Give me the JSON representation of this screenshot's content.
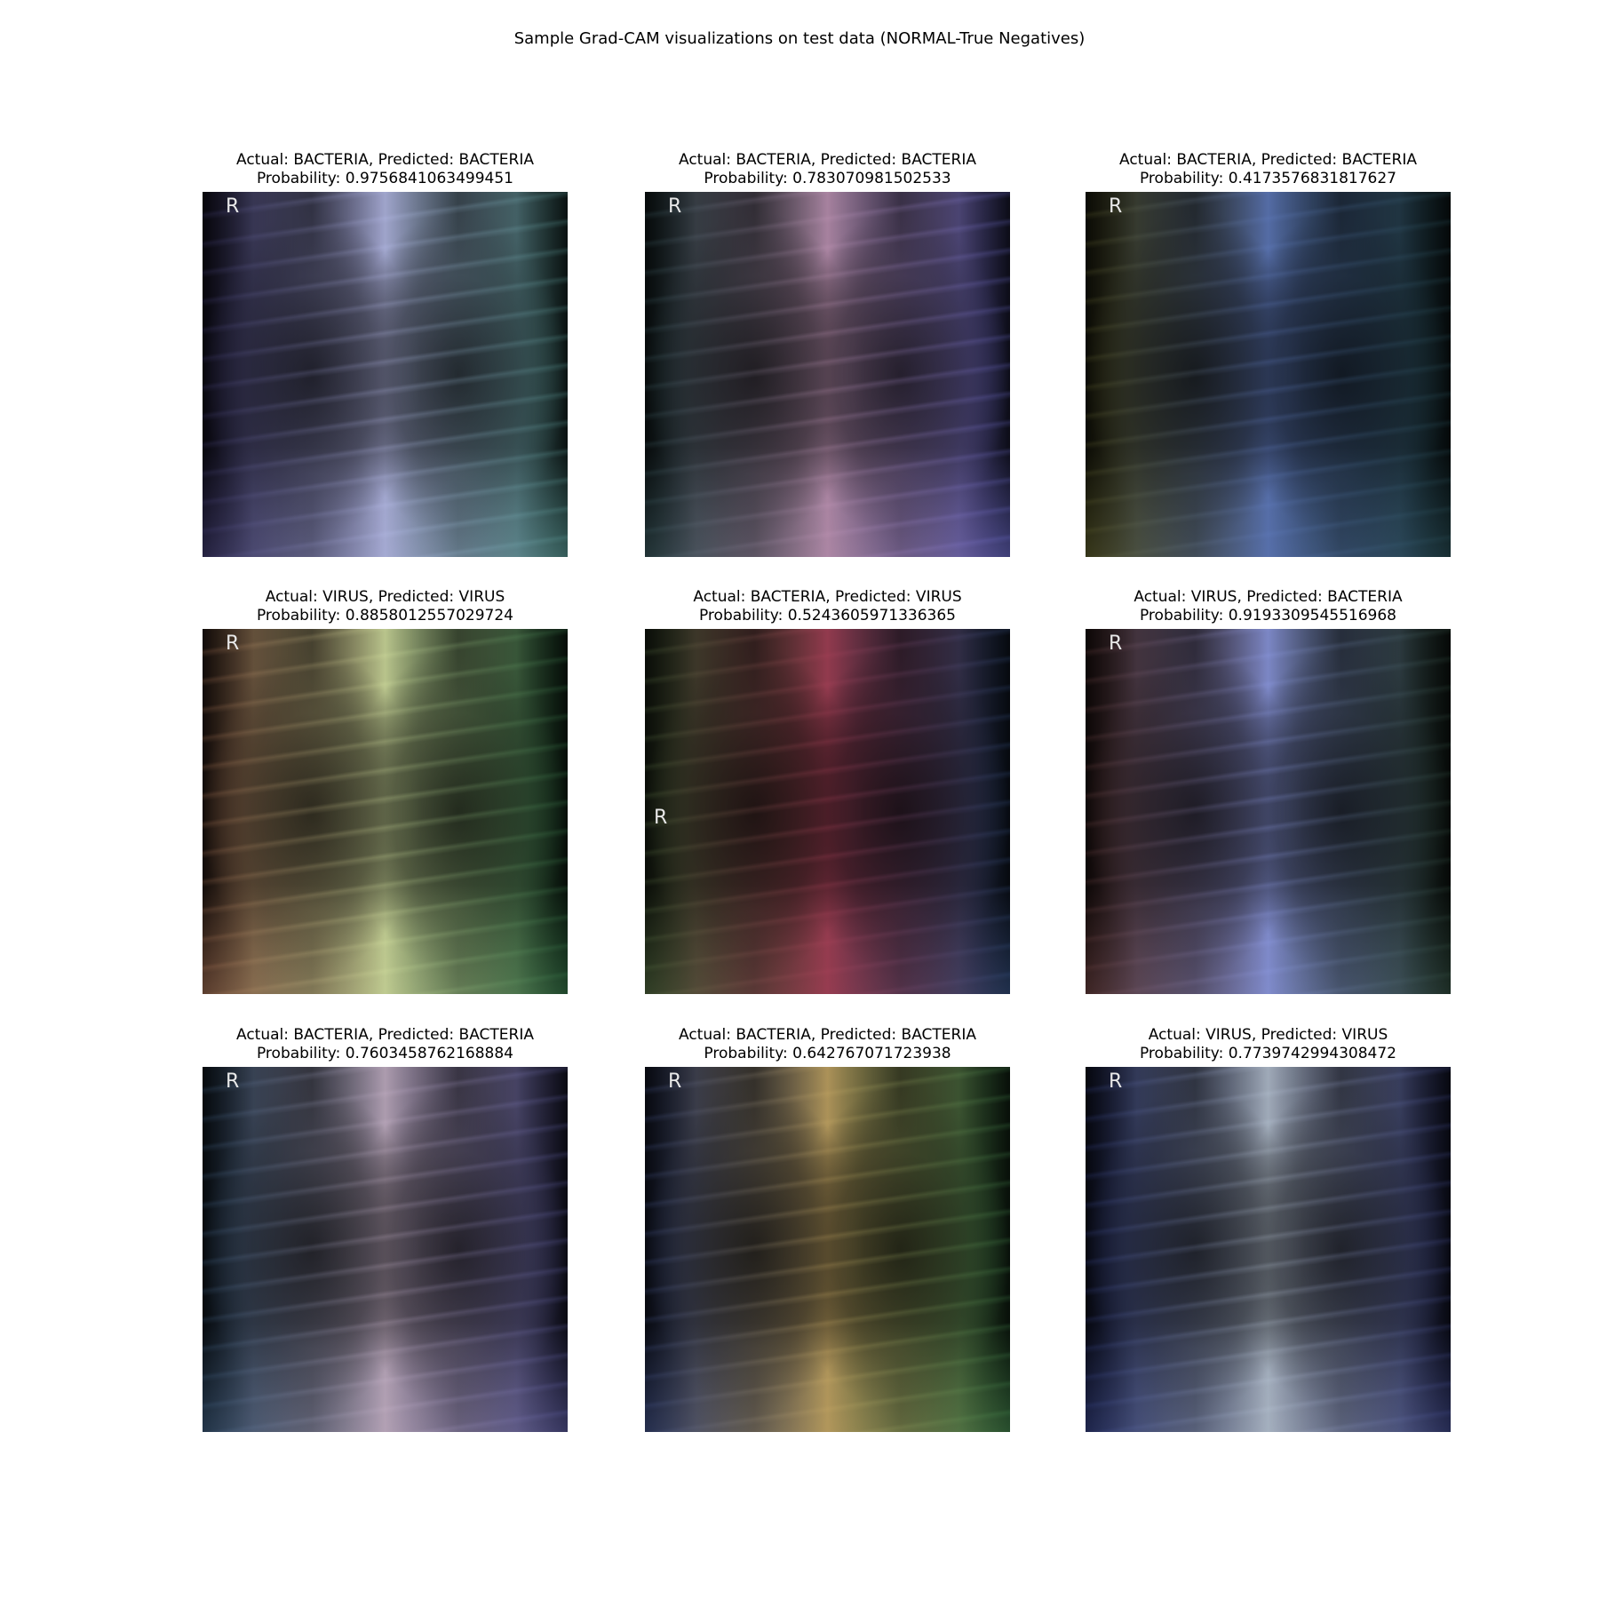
{
  "title": "Sample Grad-CAM visualizations on test data (NORMAL-True Negatives)",
  "panels": [
    {
      "actual": "Actual: BACTERIA, Predicted: BACTERIA",
      "probability": "Probability: 0.9756841063499451",
      "marker": "R",
      "overlay": [
        "#3a3470",
        "#b9bff0",
        "#5aa6a0"
      ]
    },
    {
      "actual": "Actual: BACTERIA, Predicted: BACTERIA",
      "probability": "Probability: 0.783070981502533",
      "marker": "R",
      "overlay": [
        "#31545a",
        "#c294b8",
        "#6a6ad8"
      ]
    },
    {
      "actual": "Actual: BACTERIA, Predicted: BACTERIA",
      "probability": "Probability: 0.4173576831817627",
      "marker": "R",
      "overlay": [
        "#5a5a22",
        "#5a78c0",
        "#1e4a52"
      ]
    },
    {
      "actual": "Actual: VIRUS, Predicted: VIRUS",
      "probability": "Probability: 0.8858012557029724",
      "marker": "R",
      "overlay": [
        "#a56a4c",
        "#d8e6a0",
        "#2f7a46"
      ]
    },
    {
      "actual": "Actual: BACTERIA, Predicted: VIRUS",
      "probability": "Probability: 0.5243605971336365",
      "marker": "R",
      "overlay": [
        "#4e6a3a",
        "#a83a52",
        "#2e4e86"
      ]
    },
    {
      "actual": "Actual: VIRUS, Predicted: BACTERIA",
      "probability": "Probability: 0.9193309545516968",
      "marker": "R",
      "overlay": [
        "#6a3a38",
        "#8c9ae8",
        "#2a4a3a"
      ]
    },
    {
      "actual": "Actual: BACTERIA, Predicted: BACTERIA",
      "probability": "Probability: 0.7603458762168884",
      "marker": "R",
      "overlay": [
        "#34587e",
        "#c9b4cc",
        "#5a5aa8"
      ]
    },
    {
      "actual": "Actual: BACTERIA, Predicted: BACTERIA",
      "probability": "Probability: 0.642767071723938",
      "marker": "R",
      "overlay": [
        "#3a4c8a",
        "#c8a860",
        "#3e8a4a"
      ]
    },
    {
      "actual": "Actual: VIRUS, Predicted: VIRUS",
      "probability": "Probability: 0.7739742994308472",
      "marker": "R",
      "overlay": [
        "#2c3a86",
        "#b9c6d8",
        "#3a4490"
      ]
    }
  ]
}
